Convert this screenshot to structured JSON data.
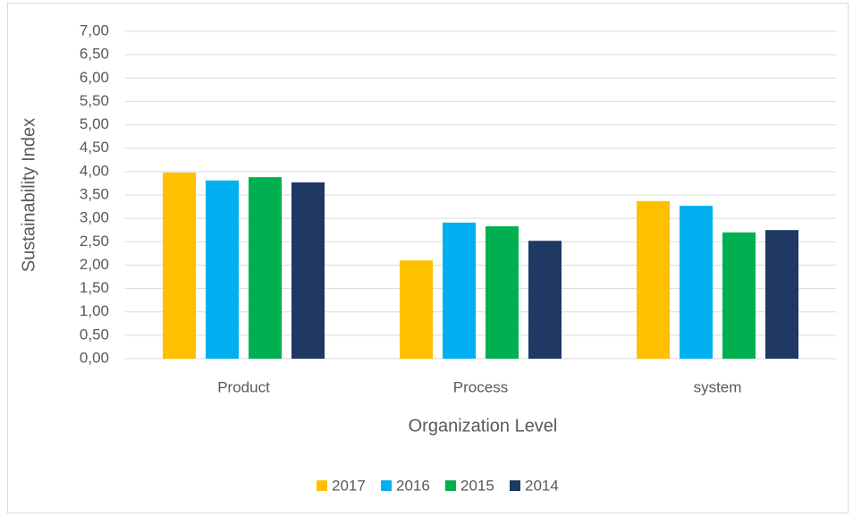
{
  "chart_data": {
    "type": "bar",
    "x_label": "Organization Level",
    "y_label": "Sustainability Index",
    "categories": [
      "Product",
      "Process",
      "system"
    ],
    "series": [
      {
        "name": "2017",
        "color": "#FFC000",
        "values": [
          3.98,
          2.1,
          3.37
        ]
      },
      {
        "name": "2016",
        "color": "#00B0F0",
        "values": [
          3.81,
          2.91,
          3.27
        ]
      },
      {
        "name": "2015",
        "color": "#00B050",
        "values": [
          3.88,
          2.83,
          2.7
        ]
      },
      {
        "name": "2014",
        "color": "#1F3864",
        "values": [
          3.77,
          2.52,
          2.75
        ]
      }
    ],
    "ylim": [
      0,
      7
    ],
    "yticks": [
      {
        "value": 0,
        "label": "0,00"
      },
      {
        "value": 0.5,
        "label": "0,50"
      },
      {
        "value": 1,
        "label": "1,00"
      },
      {
        "value": 1.5,
        "label": "1,50"
      },
      {
        "value": 2,
        "label": "2,00"
      },
      {
        "value": 2.5,
        "label": "2,50"
      },
      {
        "value": 3,
        "label": "3,00"
      },
      {
        "value": 3.5,
        "label": "3,50"
      },
      {
        "value": 4,
        "label": "4,00"
      },
      {
        "value": 4.5,
        "label": "4,50"
      },
      {
        "value": 5,
        "label": "5,00"
      },
      {
        "value": 5.5,
        "label": "5,50"
      },
      {
        "value": 6,
        "label": "6,00"
      },
      {
        "value": 6.5,
        "label": "6,50"
      },
      {
        "value": 7,
        "label": "7,00"
      }
    ],
    "grid": true,
    "legend": "bottom"
  }
}
